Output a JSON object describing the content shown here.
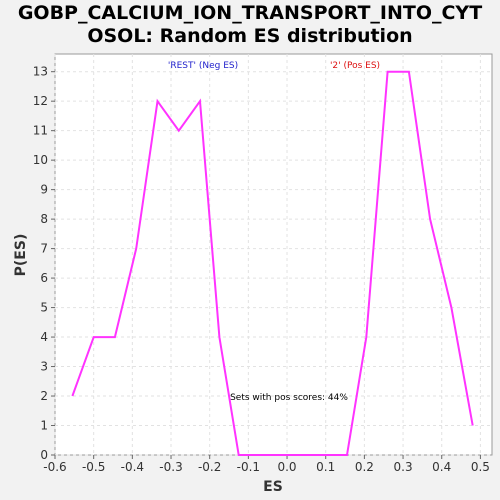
{
  "title_line1": "GOBP_CALCIUM_ION_TRANSPORT_INTO_CYT",
  "title_line2": "OSOL: Random ES distribution",
  "chart_data": {
    "type": "line",
    "xlabel": "ES",
    "ylabel": "P(ES)",
    "xlim": [
      -0.6,
      0.53
    ],
    "ylim": [
      0,
      13.6
    ],
    "xticks": [
      -0.6,
      -0.5,
      -0.4,
      -0.3,
      -0.2,
      -0.1,
      0.0,
      0.1,
      0.2,
      0.3,
      0.4,
      0.5
    ],
    "xtick_labels": [
      "-0.6",
      "-0.5",
      "-0.4",
      "-0.3",
      "-0.2",
      "-0.1",
      "0.0",
      "0.1",
      "0.2",
      "0.3",
      "0.4",
      "0.5"
    ],
    "yticks": [
      0,
      1,
      2,
      3,
      4,
      5,
      6,
      7,
      8,
      9,
      10,
      11,
      12,
      13
    ],
    "grid": true,
    "series": [
      {
        "color": "#ff33ff",
        "x": [
          -0.555,
          -0.5,
          -0.445,
          -0.39,
          -0.335,
          -0.28,
          -0.225,
          -0.175,
          -0.125,
          0.155,
          0.205,
          0.26,
          0.315,
          0.37,
          0.425,
          0.48
        ],
        "y": [
          2,
          4,
          4,
          7,
          12,
          11,
          12,
          4,
          0,
          0,
          4,
          13,
          13,
          8,
          5,
          1
        ]
      }
    ],
    "legend": [
      {
        "label": "'REST' (Neg ES)",
        "color": "#2222cc"
      },
      {
        "label": "'2' (Pos ES)",
        "color": "#dd1111"
      }
    ],
    "annotation": "Sets with pos scores: 44%"
  }
}
